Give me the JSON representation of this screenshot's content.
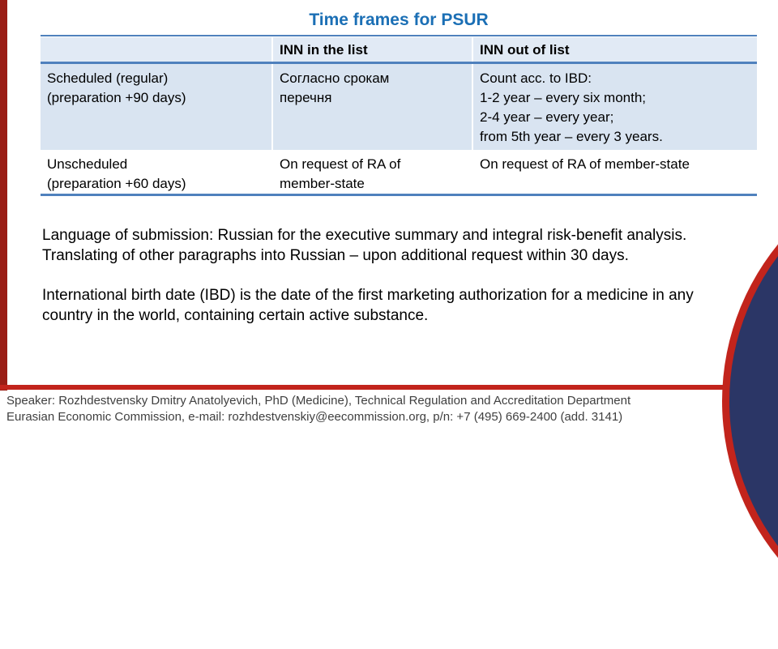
{
  "slide": {
    "title": "Time frames for PSUR",
    "table": {
      "headers": [
        "",
        "INN in the list",
        "INN out of list"
      ],
      "rows": [
        {
          "label": "Scheduled (regular)\n(preparation +90 days)",
          "inn_in": "Согласно срокам\nперечня",
          "inn_out": "Count acc. to IBD:\n1-2 year – every six month;\n2-4 year – every year;\nfrom 5th year – every 3 years."
        },
        {
          "label": "Unscheduled\n(preparation +60 days)",
          "inn_in": "On request of RA of\nmember-state",
          "inn_out": "On request of RA of member-state"
        }
      ]
    },
    "paragraphs": [
      "Language of submission: Russian for the executive summary and integral risk-benefit analysis.\nTranslating of other paragraphs into Russian – upon additional request within 30 days.",
      "International birth date (IBD) is the date of the first marketing authorization for a medicine in any\ncountry in the world, containing certain active substance."
    ],
    "footer": {
      "line1": "Speaker: Rozhdestvensky Dmitry Anatolyevich, PhD (Medicine), Technical Regulation and Accreditation Department",
      "line2": "Eurasian Economic Commission, e-mail: rozhdestvenskiy@eecommission.org, p/n: +7 (495) 669-2400 (add. 3141)"
    },
    "colors": {
      "title_blue": "#1b6fb5",
      "table_line_blue": "#4f81bd",
      "header_row_tint": "#e1eaf5",
      "row_tint": "#d9e4f1",
      "accent_red": "#c2241c",
      "left_bar_maroon": "#9a1d15",
      "corner_navy": "#2b3666",
      "footer_text": "#3f3f3f"
    }
  }
}
